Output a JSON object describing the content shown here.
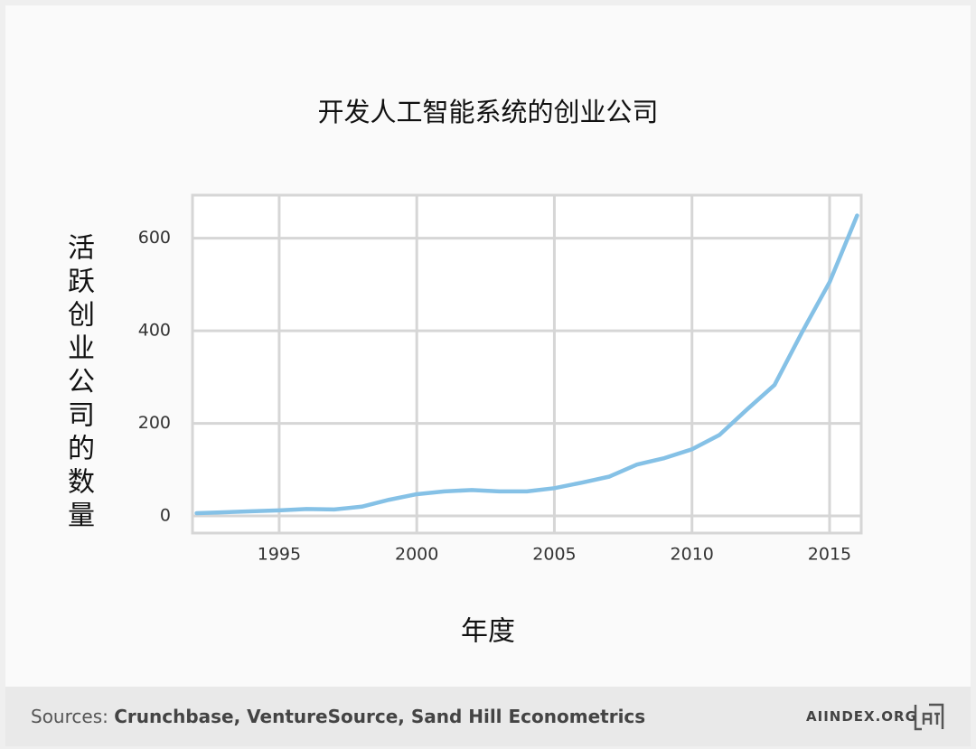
{
  "chart_data": {
    "type": "line",
    "title": "开发人工智能系统的创业公司",
    "x_label": "年度",
    "y_label": "活跃创业公司的数量",
    "x": [
      1992,
      1993,
      1994,
      1995,
      1996,
      1997,
      1998,
      1999,
      2000,
      2001,
      2002,
      2003,
      2004,
      2005,
      2006,
      2007,
      2008,
      2009,
      2010,
      2011,
      2012,
      2013,
      2014,
      2015,
      2016
    ],
    "series": [
      {
        "name": "活跃创业公司的数量",
        "color": "#85c1e6",
        "values": [
          6,
          8,
          10,
          12,
          15,
          14,
          20,
          35,
          47,
          53,
          56,
          53,
          53,
          60,
          72,
          85,
          111,
          125,
          144,
          175,
          230,
          283,
          397,
          505,
          649
        ]
      }
    ],
    "xlim": [
      1991.85,
      2016.15
    ],
    "xticks": [
      1995,
      2000,
      2005,
      2010,
      2015
    ],
    "ylim": [
      -37,
      693
    ],
    "yticks": [
      0,
      200,
      400,
      600
    ],
    "grid": true
  },
  "footer": {
    "source_label": "Sources:",
    "source_text": "Crunchbase, VentureSource, Sand Hill Econometrics",
    "site": "AIINDEX.ORG"
  }
}
